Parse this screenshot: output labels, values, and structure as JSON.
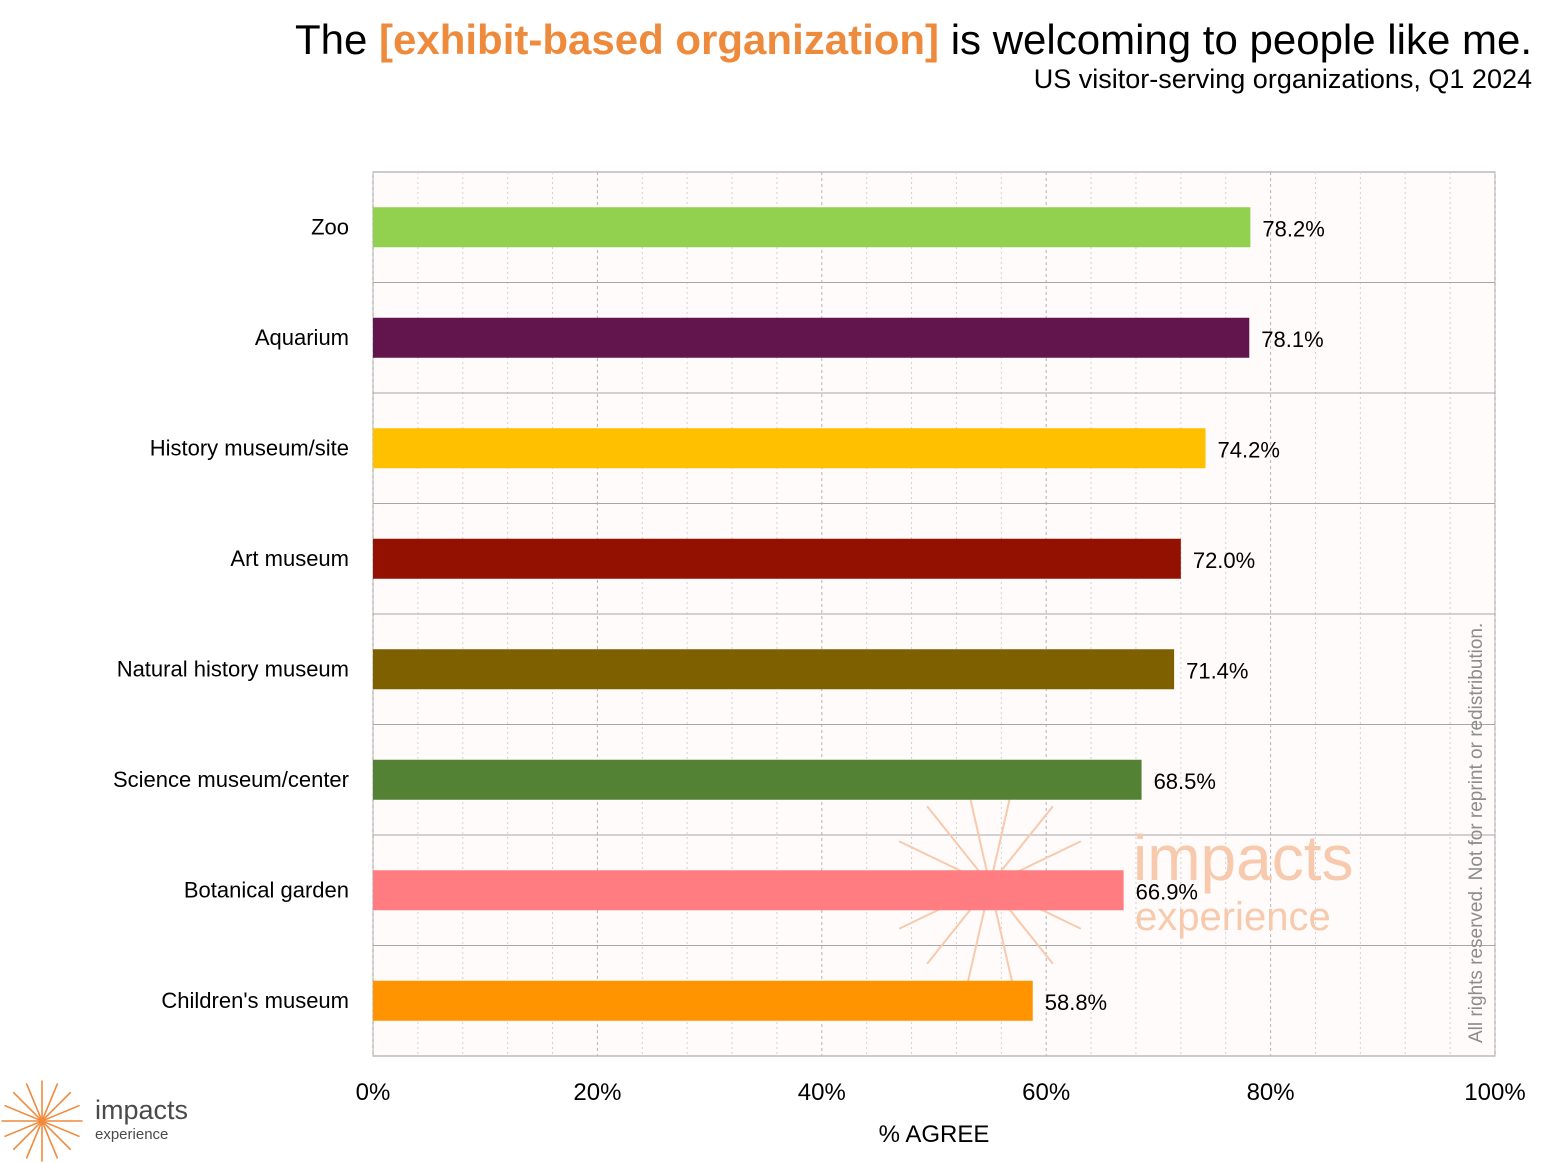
{
  "title": {
    "prefix": "The ",
    "highlight": "[exhibit-based organization]",
    "suffix": " is welcoming to people like me."
  },
  "subtitle": "US visitor-serving organizations, Q1 2024",
  "chart_data": {
    "type": "bar",
    "orientation": "horizontal",
    "categories": [
      "Zoo",
      "Aquarium",
      "History museum/site",
      "Art museum",
      "Natural history museum",
      "Science museum/center",
      "Botanical garden",
      "Children's museum"
    ],
    "values": [
      78.2,
      78.1,
      74.2,
      72.0,
      71.4,
      68.5,
      66.9,
      58.8
    ],
    "value_labels": [
      "78.2%",
      "78.1%",
      "74.2%",
      "72.0%",
      "71.4%",
      "68.5%",
      "66.9%",
      "58.8%"
    ],
    "colors": [
      "#92d050",
      "#62154d",
      "#ffc000",
      "#921100",
      "#7f6000",
      "#548235",
      "#ff7c80",
      "#ff9300"
    ],
    "xlabel": "% AGREE",
    "ylabel": "",
    "xlim": [
      0,
      100
    ],
    "xticks": [
      0,
      20,
      40,
      60,
      80,
      100
    ],
    "xtick_labels": [
      "0%",
      "20%",
      "40%",
      "60%",
      "80%",
      "100%"
    ],
    "grid": true,
    "plot_background": "#fffbfa",
    "title_highlight_color": "#ee8a3c"
  },
  "watermark": {
    "line1": "impacts",
    "line2": "experience"
  },
  "copyright": "All rights reserved. Not for reprint or redistribution.",
  "logo": {
    "line1": "impacts",
    "line2": "experience",
    "color": "#f08a3c"
  }
}
